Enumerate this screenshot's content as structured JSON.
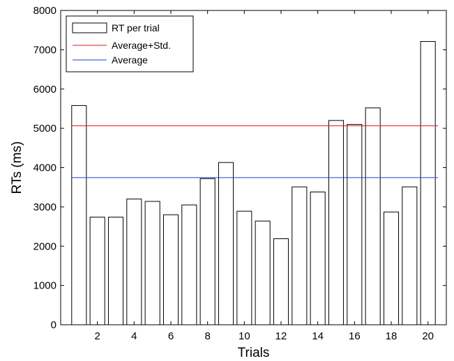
{
  "chart_data": {
    "type": "bar",
    "xlabel": "Trials",
    "ylabel": "RTs (ms)",
    "xlim": [
      0,
      21
    ],
    "ylim": [
      0,
      8000
    ],
    "x_ticks": [
      2,
      4,
      6,
      8,
      10,
      12,
      14,
      16,
      18,
      20
    ],
    "y_ticks": [
      0,
      1000,
      2000,
      3000,
      4000,
      5000,
      6000,
      7000,
      8000
    ],
    "grid": false,
    "legend_position": "top-left",
    "categories": [
      1,
      2,
      3,
      4,
      5,
      6,
      7,
      8,
      9,
      10,
      11,
      12,
      13,
      14,
      15,
      16,
      17,
      18,
      19,
      20
    ],
    "series": [
      {
        "name": "RT per trial",
        "style": "bar",
        "fill": "#ffffff",
        "edge_color": "#000000",
        "values": [
          5580,
          2740,
          2740,
          3200,
          3140,
          2800,
          3050,
          3720,
          4130,
          2890,
          2640,
          2190,
          3510,
          3380,
          5200,
          5100,
          5520,
          2870,
          3510,
          7210
        ]
      },
      {
        "name": "Average+Std.",
        "style": "hline",
        "color": "#e31a1c",
        "value": 5065
      },
      {
        "name": "Average",
        "style": "hline",
        "color": "#1f3fd4",
        "value": 3745
      }
    ]
  }
}
